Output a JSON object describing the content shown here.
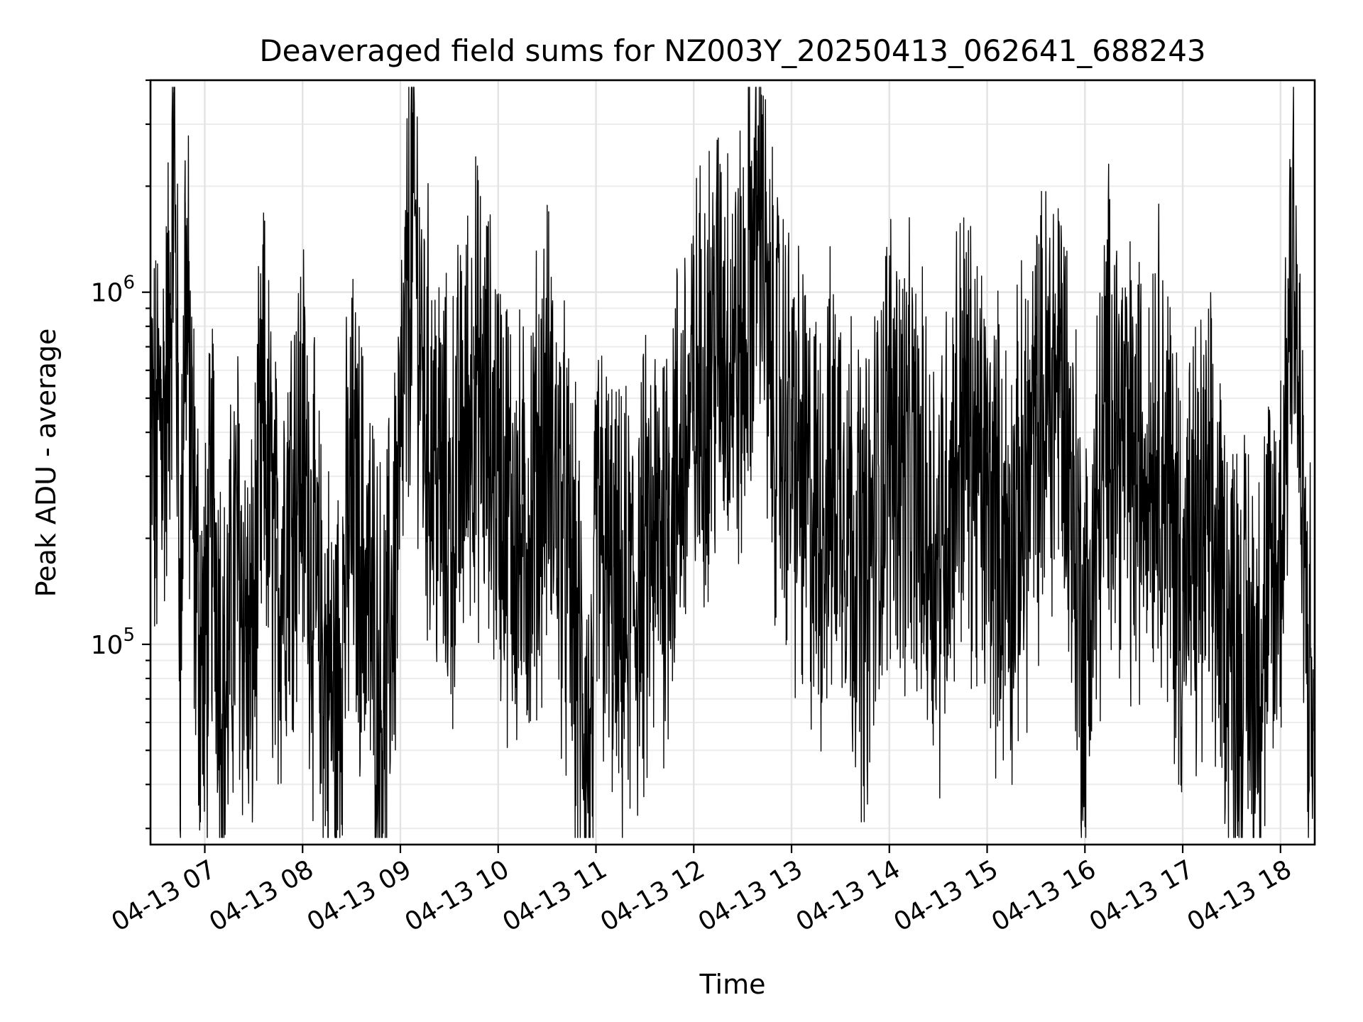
{
  "chart_data": {
    "type": "line",
    "title": "Deaveraged field sums for NZ003Y_20250413_062641_688243",
    "xlabel": "Time",
    "ylabel": "Peak ADU - average",
    "yscale": "log",
    "ylim": [
      27000,
      4000000
    ],
    "xlim": [
      "2025-04-13 06:26:41",
      "2025-04-13 18:21:00"
    ],
    "x_tick_labels": [
      "04-13 07",
      "04-13 08",
      "04-13 09",
      "04-13 10",
      "04-13 11",
      "04-13 12",
      "04-13 13",
      "04-13 14",
      "04-13 15",
      "04-13 16",
      "04-13 17",
      "04-13 18"
    ],
    "x_tick_times": [
      "2025-04-13 07:00:00",
      "2025-04-13 08:00:00",
      "2025-04-13 09:00:00",
      "2025-04-13 10:00:00",
      "2025-04-13 11:00:00",
      "2025-04-13 12:00:00",
      "2025-04-13 13:00:00",
      "2025-04-13 14:00:00",
      "2025-04-13 15:00:00",
      "2025-04-13 16:00:00",
      "2025-04-13 17:00:00",
      "2025-04-13 18:00:00"
    ],
    "y_major_ticks": [
      {
        "value": 100000,
        "base": "10",
        "exp": "5"
      },
      {
        "value": 1000000,
        "base": "10",
        "exp": "6"
      }
    ],
    "grid": true,
    "legend": "none",
    "line_color": "#000000",
    "series": [
      {
        "x": [
          "2025-04-13 06:27",
          "2025-04-13 06:30",
          "2025-04-13 06:33",
          "2025-04-13 06:36",
          "2025-04-13 06:39",
          "2025-04-13 06:40",
          "2025-04-13 06:41",
          "2025-04-13 06:43",
          "2025-04-13 06:45",
          "2025-04-13 06:48",
          "2025-04-13 06:51",
          "2025-04-13 06:54",
          "2025-04-13 06:57",
          "2025-04-13 07:00",
          "2025-04-13 07:05",
          "2025-04-13 07:12",
          "2025-04-13 07:20",
          "2025-04-13 07:28",
          "2025-04-13 07:36",
          "2025-04-13 07:44",
          "2025-04-13 07:52",
          "2025-04-13 08:00",
          "2025-04-13 08:10",
          "2025-04-13 08:20",
          "2025-04-13 08:30",
          "2025-04-13 08:40",
          "2025-04-13 08:50",
          "2025-04-13 09:00",
          "2025-04-13 09:08",
          "2025-04-13 09:14",
          "2025-04-13 09:30",
          "2025-04-13 09:45",
          "2025-04-13 10:00",
          "2025-04-13 10:15",
          "2025-04-13 10:30",
          "2025-04-13 10:45",
          "2025-04-13 10:58",
          "2025-04-13 11:00",
          "2025-04-13 11:15",
          "2025-04-13 11:30",
          "2025-04-13 11:45",
          "2025-04-13 12:00",
          "2025-04-13 12:15",
          "2025-04-13 12:30",
          "2025-04-13 12:42",
          "2025-04-13 12:45",
          "2025-04-13 13:00",
          "2025-04-13 13:15",
          "2025-04-13 13:30",
          "2025-04-13 13:45",
          "2025-04-13 14:00",
          "2025-04-13 14:15",
          "2025-04-13 14:30",
          "2025-04-13 14:45",
          "2025-04-13 15:00",
          "2025-04-13 15:15",
          "2025-04-13 15:30",
          "2025-04-13 15:45",
          "2025-04-13 16:00",
          "2025-04-13 16:15",
          "2025-04-13 16:30",
          "2025-04-13 16:45",
          "2025-04-13 17:00",
          "2025-04-13 17:15",
          "2025-04-13 17:30",
          "2025-04-13 17:45",
          "2025-04-13 18:00",
          "2025-04-13 18:08",
          "2025-04-13 18:12",
          "2025-04-13 18:16",
          "2025-04-13 18:20"
        ],
        "y": [
          580000,
          420000,
          700000,
          620000,
          1300000,
          2000000,
          3700000,
          900000,
          140000,
          1800000,
          600000,
          250000,
          150000,
          120000,
          350000,
          90000,
          280000,
          110000,
          600000,
          200000,
          380000,
          500000,
          150000,
          90000,
          380000,
          200000,
          90000,
          450000,
          2700000,
          700000,
          300000,
          800000,
          450000,
          250000,
          600000,
          200000,
          50000,
          300000,
          150000,
          220000,
          350000,
          650000,
          1100000,
          900000,
          3200000,
          850000,
          500000,
          300000,
          450000,
          200000,
          600000,
          400000,
          250000,
          650000,
          350000,
          250000,
          550000,
          900000,
          130000,
          750000,
          400000,
          600000,
          200000,
          300000,
          150000,
          120000,
          250000,
          2600000,
          450000,
          150000,
          80000
        ]
      }
    ]
  }
}
